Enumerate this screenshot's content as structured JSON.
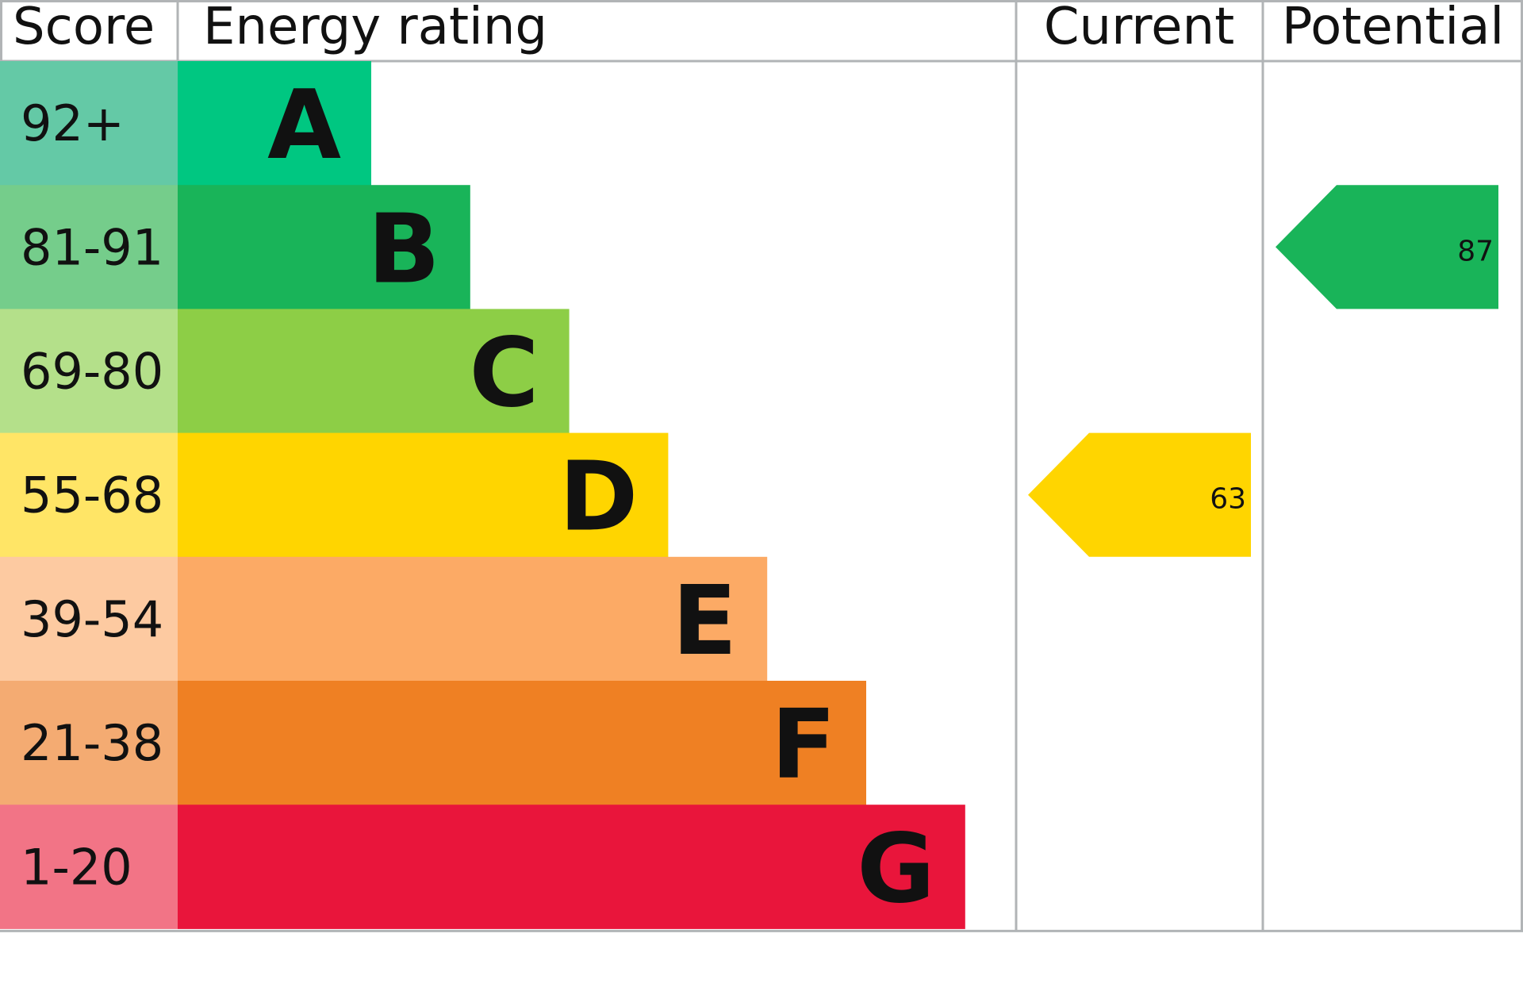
{
  "chart_data": {
    "type": "bar",
    "headers": {
      "score": "Score",
      "rating": "Energy rating",
      "current": "Current",
      "potential": "Potential"
    },
    "bands": [
      {
        "score": "92+",
        "letter": "A",
        "color": "#00c781",
        "score_color": "#64c9a6"
      },
      {
        "score": "81-91",
        "letter": "B",
        "color": "#19b459",
        "score_color": "#75cd8b"
      },
      {
        "score": "69-80",
        "letter": "C",
        "color": "#8dce46",
        "score_color": "#b4e08a"
      },
      {
        "score": "55-68",
        "letter": "D",
        "color": "#ffd500",
        "score_color": "#ffe566"
      },
      {
        "score": "39-54",
        "letter": "E",
        "color": "#fcaa65",
        "score_color": "#fdcaa1"
      },
      {
        "score": "21-38",
        "letter": "F",
        "color": "#ef8023",
        "score_color": "#f4ab72"
      },
      {
        "score": "1-20",
        "letter": "G",
        "color": "#e9153b",
        "score_color": "#f27486"
      }
    ],
    "current": {
      "value": 63,
      "band": "D",
      "label": "63"
    },
    "potential": {
      "value": 87,
      "band": "B",
      "label": "87"
    },
    "grid_color": "#b1b4b6"
  }
}
